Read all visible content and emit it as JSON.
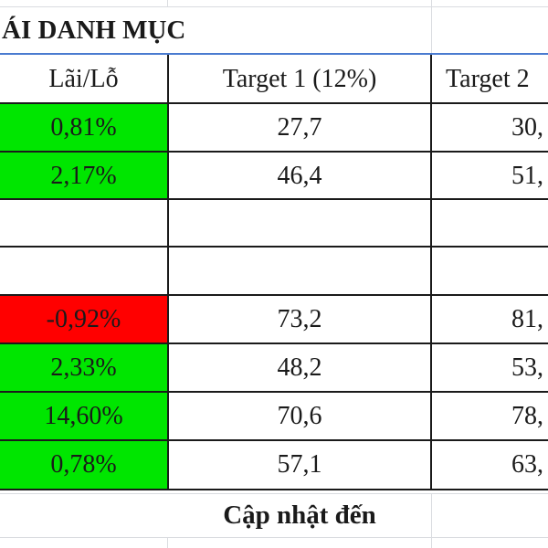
{
  "title": "ÁI DANH MỤC",
  "headers": {
    "pnl": "Lãi/Lỗ",
    "target1": "Target 1 (12%)",
    "target2": "Target 2"
  },
  "rows": [
    {
      "pnl": "0,81%",
      "status": "gain",
      "target1": "27,7",
      "target2": "30,"
    },
    {
      "pnl": "2,17%",
      "status": "gain",
      "target1": "46,4",
      "target2": "51,"
    },
    {
      "pnl": "",
      "status": "empty",
      "target1": "",
      "target2": ""
    },
    {
      "pnl": "",
      "status": "empty",
      "target1": "",
      "target2": ""
    },
    {
      "pnl": "-0,92%",
      "status": "loss",
      "target1": "73,2",
      "target2": "81,"
    },
    {
      "pnl": "2,33%",
      "status": "gain",
      "target1": "48,2",
      "target2": "53,"
    },
    {
      "pnl": "14,60%",
      "status": "gain",
      "target1": "70,6",
      "target2": "78,"
    },
    {
      "pnl": "0,78%",
      "status": "gain",
      "target1": "57,1",
      "target2": "63,"
    }
  ],
  "footer": "Cập nhật đến",
  "colors": {
    "gain": "#00e600",
    "loss": "#ff0000",
    "border": "#1a1a1a",
    "grid": "#dadce0",
    "accent": "#4a7bd0"
  }
}
